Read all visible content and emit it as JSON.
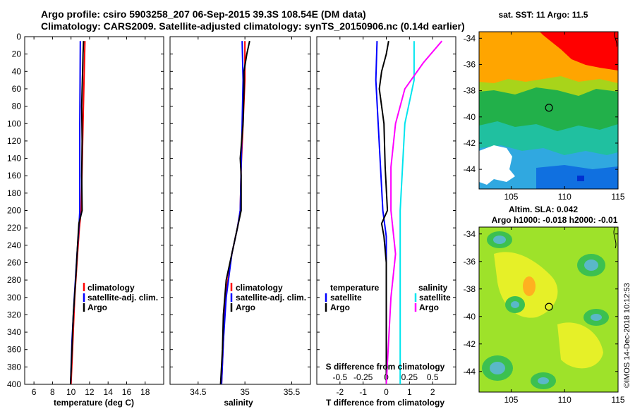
{
  "title": {
    "line1": "Argo profile: csiro 5903258_207 06-Sep-2015 39.3S 108.54E (DM data)",
    "line2": "Climatology: CARS2009. Satellite-adjusted climatology: synTS_20150906.nc (0.14d earlier)"
  },
  "colors": {
    "climatology": "#ff0000",
    "satellite": "#0000ff",
    "argo": "#000000",
    "sal_satellite": "#00e5ee",
    "sal_climatology": "#ff00ff"
  },
  "chart_data": [
    {
      "type": "line",
      "name": "temperature-panel",
      "xlabel": "temperature (deg C)",
      "ylabel": "",
      "xlim": [
        5,
        20
      ],
      "ylim": [
        400,
        0
      ],
      "xticks": [
        6,
        8,
        10,
        12,
        14,
        16,
        18
      ],
      "yticks": [
        0,
        20,
        40,
        60,
        80,
        100,
        120,
        140,
        160,
        180,
        200,
        220,
        240,
        260,
        280,
        300,
        320,
        340,
        360,
        380,
        400
      ],
      "legend": [
        "climatology",
        "satellite-adj. clim.",
        "Argo"
      ],
      "series": [
        {
          "name": "climatology",
          "color": "#ff0000",
          "depth": [
            5,
            50,
            100,
            150,
            200,
            220,
            250,
            300,
            350,
            400
          ],
          "values": [
            11.5,
            11.4,
            11.3,
            11.2,
            11.1,
            10.9,
            10.7,
            10.4,
            10.2,
            10.0
          ]
        },
        {
          "name": "satellite-adj. clim.",
          "color": "#0000ff",
          "depth": [
            5,
            50,
            100,
            150,
            200,
            220,
            250,
            300,
            350,
            400
          ],
          "values": [
            11.0,
            10.98,
            10.95,
            10.95,
            10.95,
            10.85,
            10.65,
            10.35,
            10.1,
            9.95
          ]
        },
        {
          "name": "Argo",
          "color": "#000000",
          "depth": [
            5,
            20,
            40,
            60,
            80,
            120,
            160,
            200,
            215,
            240,
            280,
            320,
            360,
            400
          ],
          "values": [
            11.35,
            11.3,
            11.25,
            11.2,
            11.15,
            11.2,
            11.15,
            11.2,
            10.85,
            10.7,
            10.5,
            10.25,
            10.1,
            9.95
          ]
        }
      ]
    },
    {
      "type": "line",
      "name": "salinity-panel",
      "xlabel": "salinity",
      "ylabel": "",
      "xlim": [
        34.2,
        35.7
      ],
      "ylim": [
        400,
        0
      ],
      "xticks": [
        34.5,
        35,
        35.5
      ],
      "legend": [
        "climatology",
        "satellite-adj. clim.",
        "Argo"
      ],
      "series": [
        {
          "name": "climatology",
          "color": "#ff0000",
          "depth": [
            5,
            50,
            100,
            150,
            200,
            220,
            250,
            300,
            350,
            400
          ],
          "values": [
            35.0,
            35.0,
            34.98,
            34.96,
            34.95,
            34.92,
            34.86,
            34.79,
            34.77,
            34.75
          ]
        },
        {
          "name": "satellite-adj. clim.",
          "color": "#0000ff",
          "depth": [
            5,
            50,
            100,
            150,
            200,
            220,
            250,
            300,
            350,
            400
          ],
          "values": [
            34.97,
            34.98,
            34.97,
            34.96,
            34.95,
            34.92,
            34.86,
            34.8,
            34.77,
            34.75
          ]
        },
        {
          "name": "Argo",
          "color": "#000000",
          "depth": [
            5,
            20,
            40,
            60,
            100,
            140,
            160,
            200,
            215,
            240,
            280,
            320,
            360,
            400
          ],
          "values": [
            35.05,
            35.02,
            34.99,
            34.99,
            34.98,
            34.95,
            34.96,
            34.96,
            34.93,
            34.88,
            34.8,
            34.77,
            34.76,
            34.74
          ]
        }
      ]
    },
    {
      "type": "line",
      "name": "difference-panel",
      "xlabel": "T difference from climatology",
      "xlabel2": "S difference from climatology",
      "xlim": [
        -3,
        3
      ],
      "ylim": [
        400,
        0
      ],
      "xticks": [
        -2,
        -1,
        0,
        1,
        2
      ],
      "xticks2": [
        "-0.5",
        "-0.25",
        "0",
        "0.25",
        "0.5"
      ],
      "legend_temperature_title": "temperature",
      "legend_salinity_title": "salinity",
      "legend_temperature": [
        "satellite",
        "Argo"
      ],
      "legend_salinity": [
        "satellite",
        "Argo"
      ],
      "series": [
        {
          "name": "T satellite",
          "color": "#0000ff",
          "depth": [
            5,
            50,
            100,
            150,
            200,
            230,
            260,
            300,
            400
          ],
          "values": [
            -0.4,
            -0.45,
            -0.35,
            -0.25,
            -0.15,
            0.0,
            0.0,
            0.0,
            0.0
          ]
        },
        {
          "name": "T Argo",
          "color": "#000000",
          "depth": [
            5,
            20,
            40,
            60,
            100,
            150,
            200,
            215,
            230,
            260,
            300,
            400
          ],
          "values": [
            0.1,
            0.0,
            -0.2,
            -0.3,
            -0.1,
            -0.05,
            0.05,
            -0.2,
            -0.1,
            0.0,
            0.0,
            0.0
          ]
        },
        {
          "name": "S satellite",
          "color": "#00e5ee",
          "depth": [
            5,
            50,
            100,
            200,
            300,
            400
          ],
          "values": [
            0.3,
            0.3,
            0.2,
            0.15,
            0.15,
            0.15
          ]
        },
        {
          "name": "S Argo",
          "color": "#ff00ff",
          "depth": [
            5,
            30,
            60,
            100,
            150,
            200,
            250,
            300,
            400
          ],
          "values": [
            0.6,
            0.4,
            0.2,
            0.1,
            0.05,
            0.05,
            0.1,
            0.05,
            0.0
          ]
        }
      ]
    },
    {
      "type": "heatmap",
      "name": "sst-map",
      "title": "sat. SST: 11 Argo: 11.5",
      "xticks": [
        105,
        110,
        115
      ],
      "yticks": [
        -34,
        -36,
        -38,
        -40,
        -42,
        -44
      ],
      "xlim": [
        102,
        115
      ],
      "ylim": [
        -45.5,
        -33.5
      ],
      "marker": {
        "lon": 108.54,
        "lat": -39.3
      }
    },
    {
      "type": "heatmap",
      "name": "sla-map",
      "title": "Altim. SLA: 0.042",
      "subtitle": "Argo h1000: -0.018 h2000: -0.01",
      "xticks": [
        105,
        110,
        115
      ],
      "yticks": [
        -34,
        -36,
        -38,
        -40,
        -42,
        -44
      ],
      "xlim": [
        102,
        115
      ],
      "ylim": [
        -45.5,
        -33.5
      ],
      "marker": {
        "lon": 108.54,
        "lat": -39.3
      }
    }
  ],
  "watermark": "©IMOS 14-Dec-2018 10:12:53"
}
